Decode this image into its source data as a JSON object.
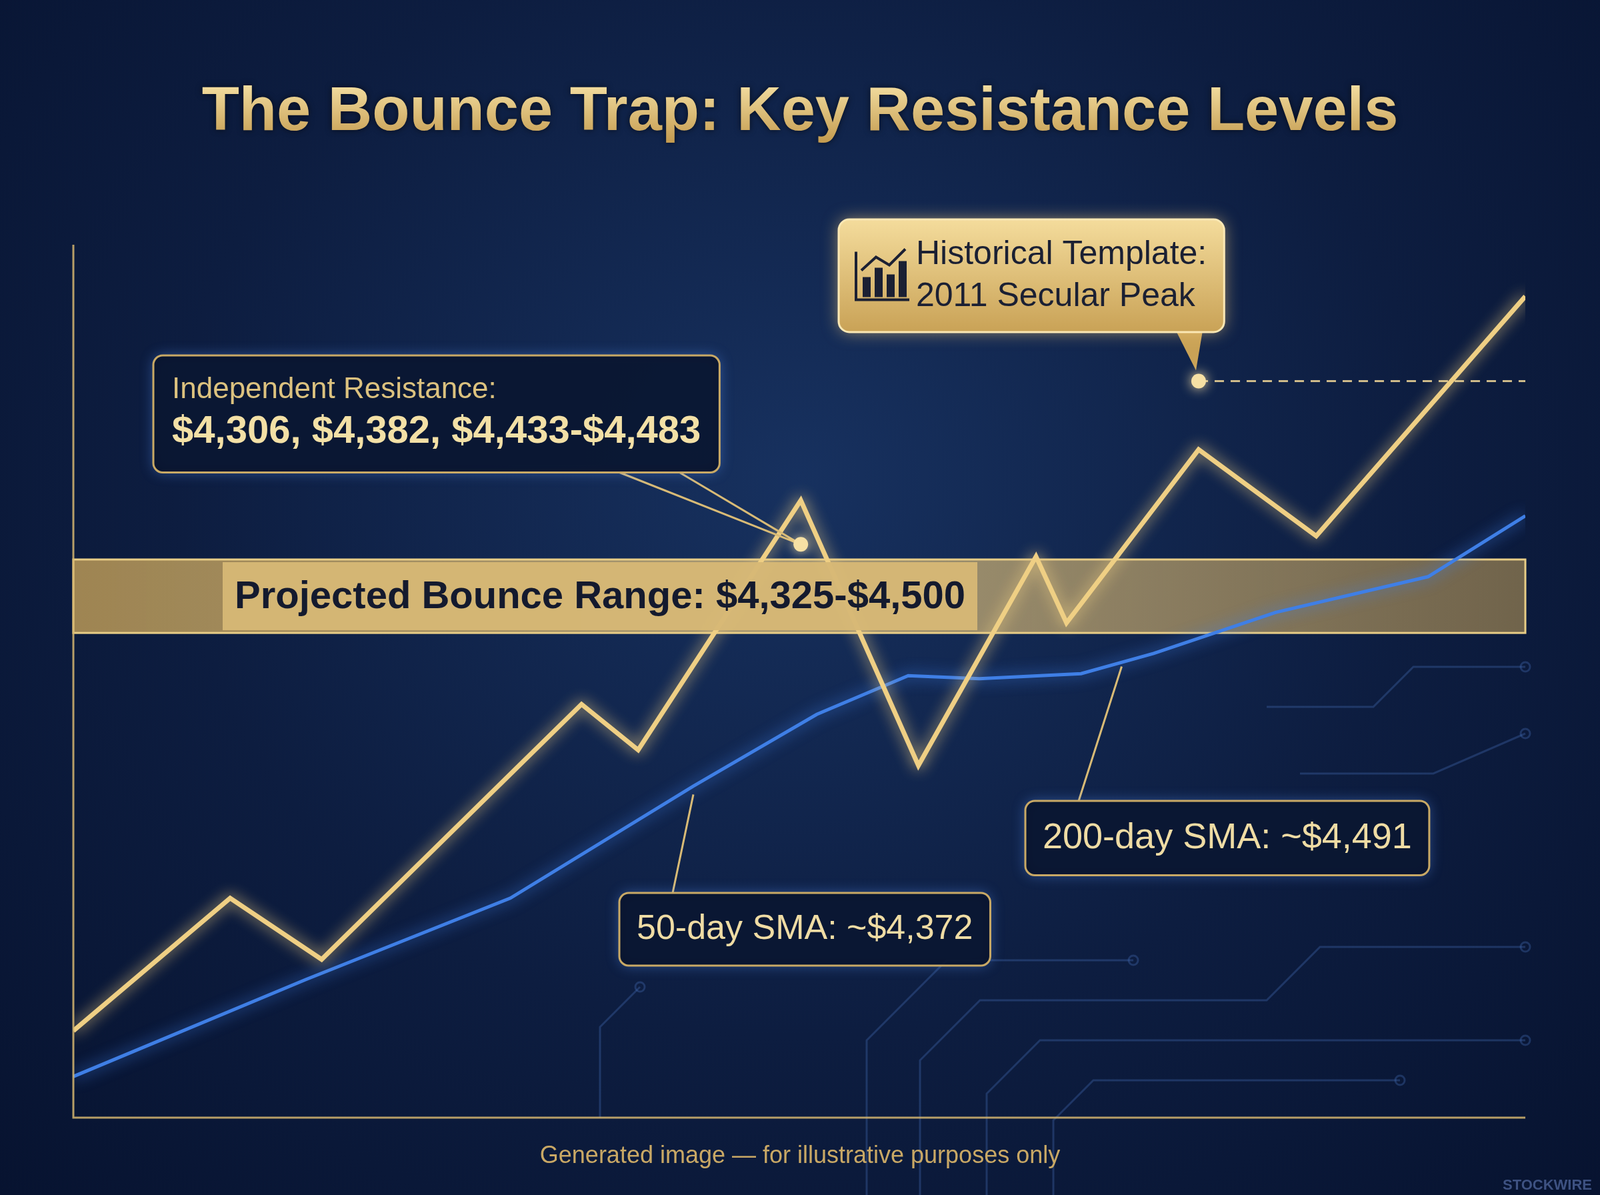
{
  "chart_data": {
    "type": "line",
    "title": "The Bounce Trap: Key Resistance Levels",
    "xlim": [
      0,
      100
    ],
    "ylim": [
      3170,
      5250
    ],
    "tick_labels": false,
    "grid": false,
    "series": [
      {
        "color": "#efcf84",
        "line_style": "solid",
        "x": [
          0,
          10.8,
          17.1,
          35,
          38.9,
          50.1,
          58.2,
          66.3,
          68.4,
          77.5,
          85.6,
          100
        ],
        "values": [
          3377,
          3693,
          3547,
          4155,
          4046,
          4641,
          4009,
          4507,
          4349,
          4762,
          4556,
          5127
        ]
      },
      {
        "color": "#3f7fe6",
        "line_style": "solid",
        "x": [
          0,
          16,
          30.1,
          42.7,
          51.2,
          57.5,
          62.4,
          69.4,
          74.4,
          82.8,
          93.3,
          100
        ],
        "values": [
          3268,
          3499,
          3693,
          3960,
          4131,
          4223,
          4216,
          4228,
          4276,
          4374,
          4459,
          4604
        ]
      }
    ],
    "band": {
      "text": "Projected Bounce Range: $4,325-$4,500",
      "range": [
        4325,
        4500
      ]
    },
    "annotations": [
      {
        "text": [
          "Independent Resistance:",
          "$4,306, $4,382, $4,433-$4,483"
        ],
        "x": 50.1,
        "y": 4536,
        "marker": "circle"
      },
      {
        "text": [
          "Historical Template:",
          "2011 Secular Peak"
        ],
        "x": 77.5,
        "y": 4925,
        "marker": "circle",
        "line_style": "dashed"
      },
      {
        "text": [
          "50-day SMA: ~$4,372"
        ],
        "x": 42.7,
        "y": 3940
      },
      {
        "text": [
          "200-day SMA: ~$4,491"
        ],
        "x": 72.2,
        "y": 4245
      }
    ],
    "footer": "Generated image — for illustrative purposes only",
    "watermark": "STOCKWIRE"
  }
}
